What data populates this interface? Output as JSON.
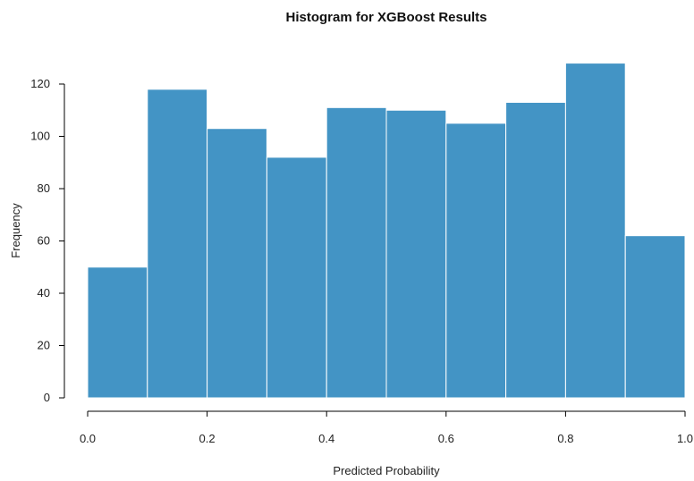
{
  "chart_data": {
    "type": "bar",
    "title": "Histogram for XGBoost Results",
    "xlabel": "Predicted Probability",
    "ylabel": "Frequency",
    "bin_edges": [
      0.0,
      0.1,
      0.2,
      0.3,
      0.4,
      0.5,
      0.6,
      0.7,
      0.8,
      0.9,
      1.0
    ],
    "values": [
      50,
      118,
      103,
      92,
      111,
      110,
      105,
      113,
      128,
      62
    ],
    "xlim": [
      0.0,
      1.0
    ],
    "ylim": [
      0,
      120
    ],
    "x_ticks": [
      "0.0",
      "0.2",
      "0.4",
      "0.6",
      "0.8",
      "1.0"
    ],
    "y_ticks": [
      "0",
      "20",
      "40",
      "60",
      "80",
      "100",
      "120"
    ],
    "bar_color": "#4394c5",
    "grid": false,
    "legend": "none"
  }
}
